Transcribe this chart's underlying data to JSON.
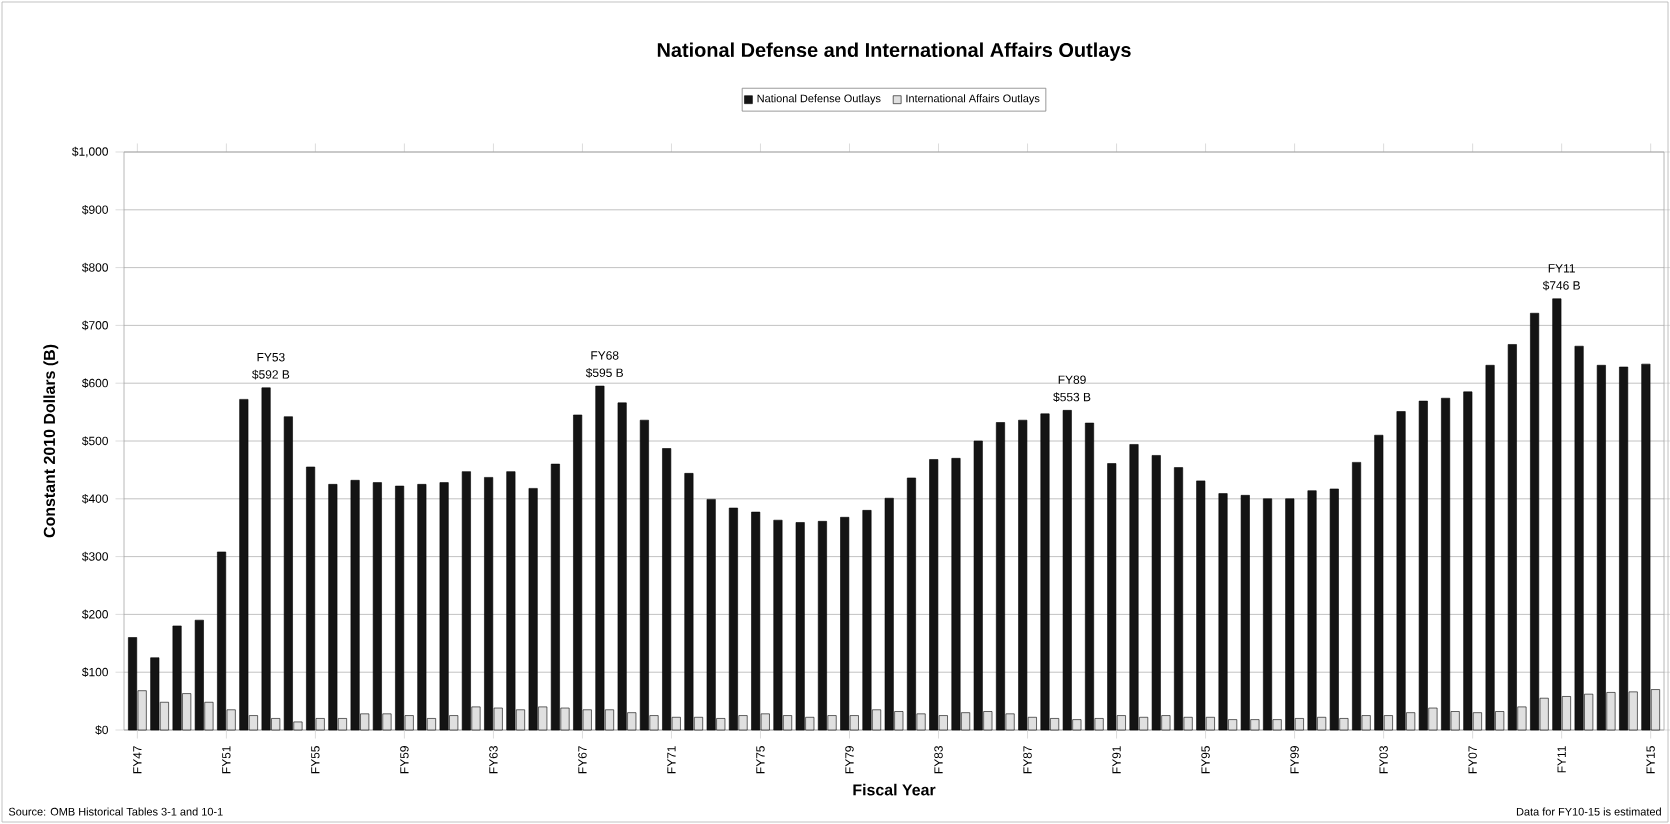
{
  "chart_data": {
    "type": "bar",
    "title": "National Defense and International Affairs Outlays",
    "xlabel": "Fiscal Year",
    "ylabel": "Constant 2010 Dollars (B)",
    "categories": [
      "FY47",
      null,
      null,
      null,
      "FY51",
      null,
      null,
      null,
      "FY55",
      null,
      null,
      null,
      "FY59",
      null,
      null,
      null,
      "FY63",
      null,
      null,
      null,
      "FY67",
      null,
      null,
      null,
      "FY71",
      null,
      null,
      null,
      "FY75",
      null,
      null,
      null,
      "FY79",
      null,
      null,
      null,
      "FY83",
      null,
      null,
      null,
      "FY87",
      null,
      null,
      null,
      "FY91",
      null,
      null,
      null,
      "FY95",
      null,
      null,
      null,
      "FY99",
      null,
      null,
      null,
      "FY03",
      null,
      null,
      null,
      "FY07",
      null,
      null,
      null,
      "FY11",
      null,
      null,
      null,
      "FY15"
    ],
    "series": [
      {
        "name": "National Defense Outlays",
        "color": "#141414",
        "values": [
          160,
          125,
          180,
          190,
          308,
          572,
          592,
          542,
          455,
          425,
          432,
          428,
          422,
          425,
          428,
          447,
          437,
          447,
          418,
          460,
          545,
          595,
          566,
          536,
          487,
          444,
          399,
          384,
          377,
          363,
          359,
          361,
          368,
          380,
          401,
          436,
          468,
          470,
          500,
          532,
          536,
          547,
          553,
          531,
          461,
          494,
          475,
          454,
          431,
          409,
          406,
          400,
          400,
          414,
          417,
          463,
          510,
          551,
          569,
          574,
          585,
          631,
          667,
          721,
          746,
          664,
          631,
          628,
          633
        ]
      },
      {
        "name": "International Affairs Outlays",
        "color": "#e0e0e0",
        "values": [
          68,
          48,
          63,
          48,
          35,
          25,
          20,
          14,
          20,
          20,
          28,
          28,
          25,
          20,
          25,
          40,
          38,
          35,
          40,
          38,
          35,
          35,
          30,
          25,
          22,
          22,
          20,
          25,
          28,
          25,
          22,
          25,
          25,
          35,
          32,
          28,
          25,
          30,
          32,
          28,
          22,
          20,
          18,
          20,
          25,
          22,
          25,
          22,
          22,
          18,
          18,
          18,
          20,
          22,
          20,
          25,
          25,
          30,
          38,
          32,
          30,
          32,
          40,
          55,
          58,
          62,
          65,
          66,
          70
        ]
      }
    ],
    "ylim": [
      0,
      1000
    ],
    "yticks": [
      {
        "value": 0,
        "label": "$0"
      },
      {
        "value": 100,
        "label": "$100"
      },
      {
        "value": 200,
        "label": "$200"
      },
      {
        "value": 300,
        "label": "$300"
      },
      {
        "value": 400,
        "label": "$400"
      },
      {
        "value": 500,
        "label": "$500"
      },
      {
        "value": 600,
        "label": "$600"
      },
      {
        "value": 700,
        "label": "$700"
      },
      {
        "value": 800,
        "label": "$800"
      },
      {
        "value": 900,
        "label": "$900"
      },
      {
        "value": 1000,
        "label": "$1,000"
      }
    ],
    "grid": "y",
    "legend": "top",
    "annotations": [
      {
        "text": "FY53",
        "y": 592
      },
      {
        "text": "$592 B",
        "y": 592
      },
      {
        "text": "FY68",
        "y": 595
      },
      {
        "text": "$595 B",
        "y": 595
      },
      {
        "text": "FY89",
        "y": 553
      },
      {
        "text": "$553 B",
        "y": 553
      },
      {
        "text": "FY11",
        "y": 746
      },
      {
        "text": "$746 B",
        "y": 746
      },
      "Source: OMB Historical Tables 3-1 and 10-1",
      "Data for FY10-15 is estimated"
    ]
  }
}
